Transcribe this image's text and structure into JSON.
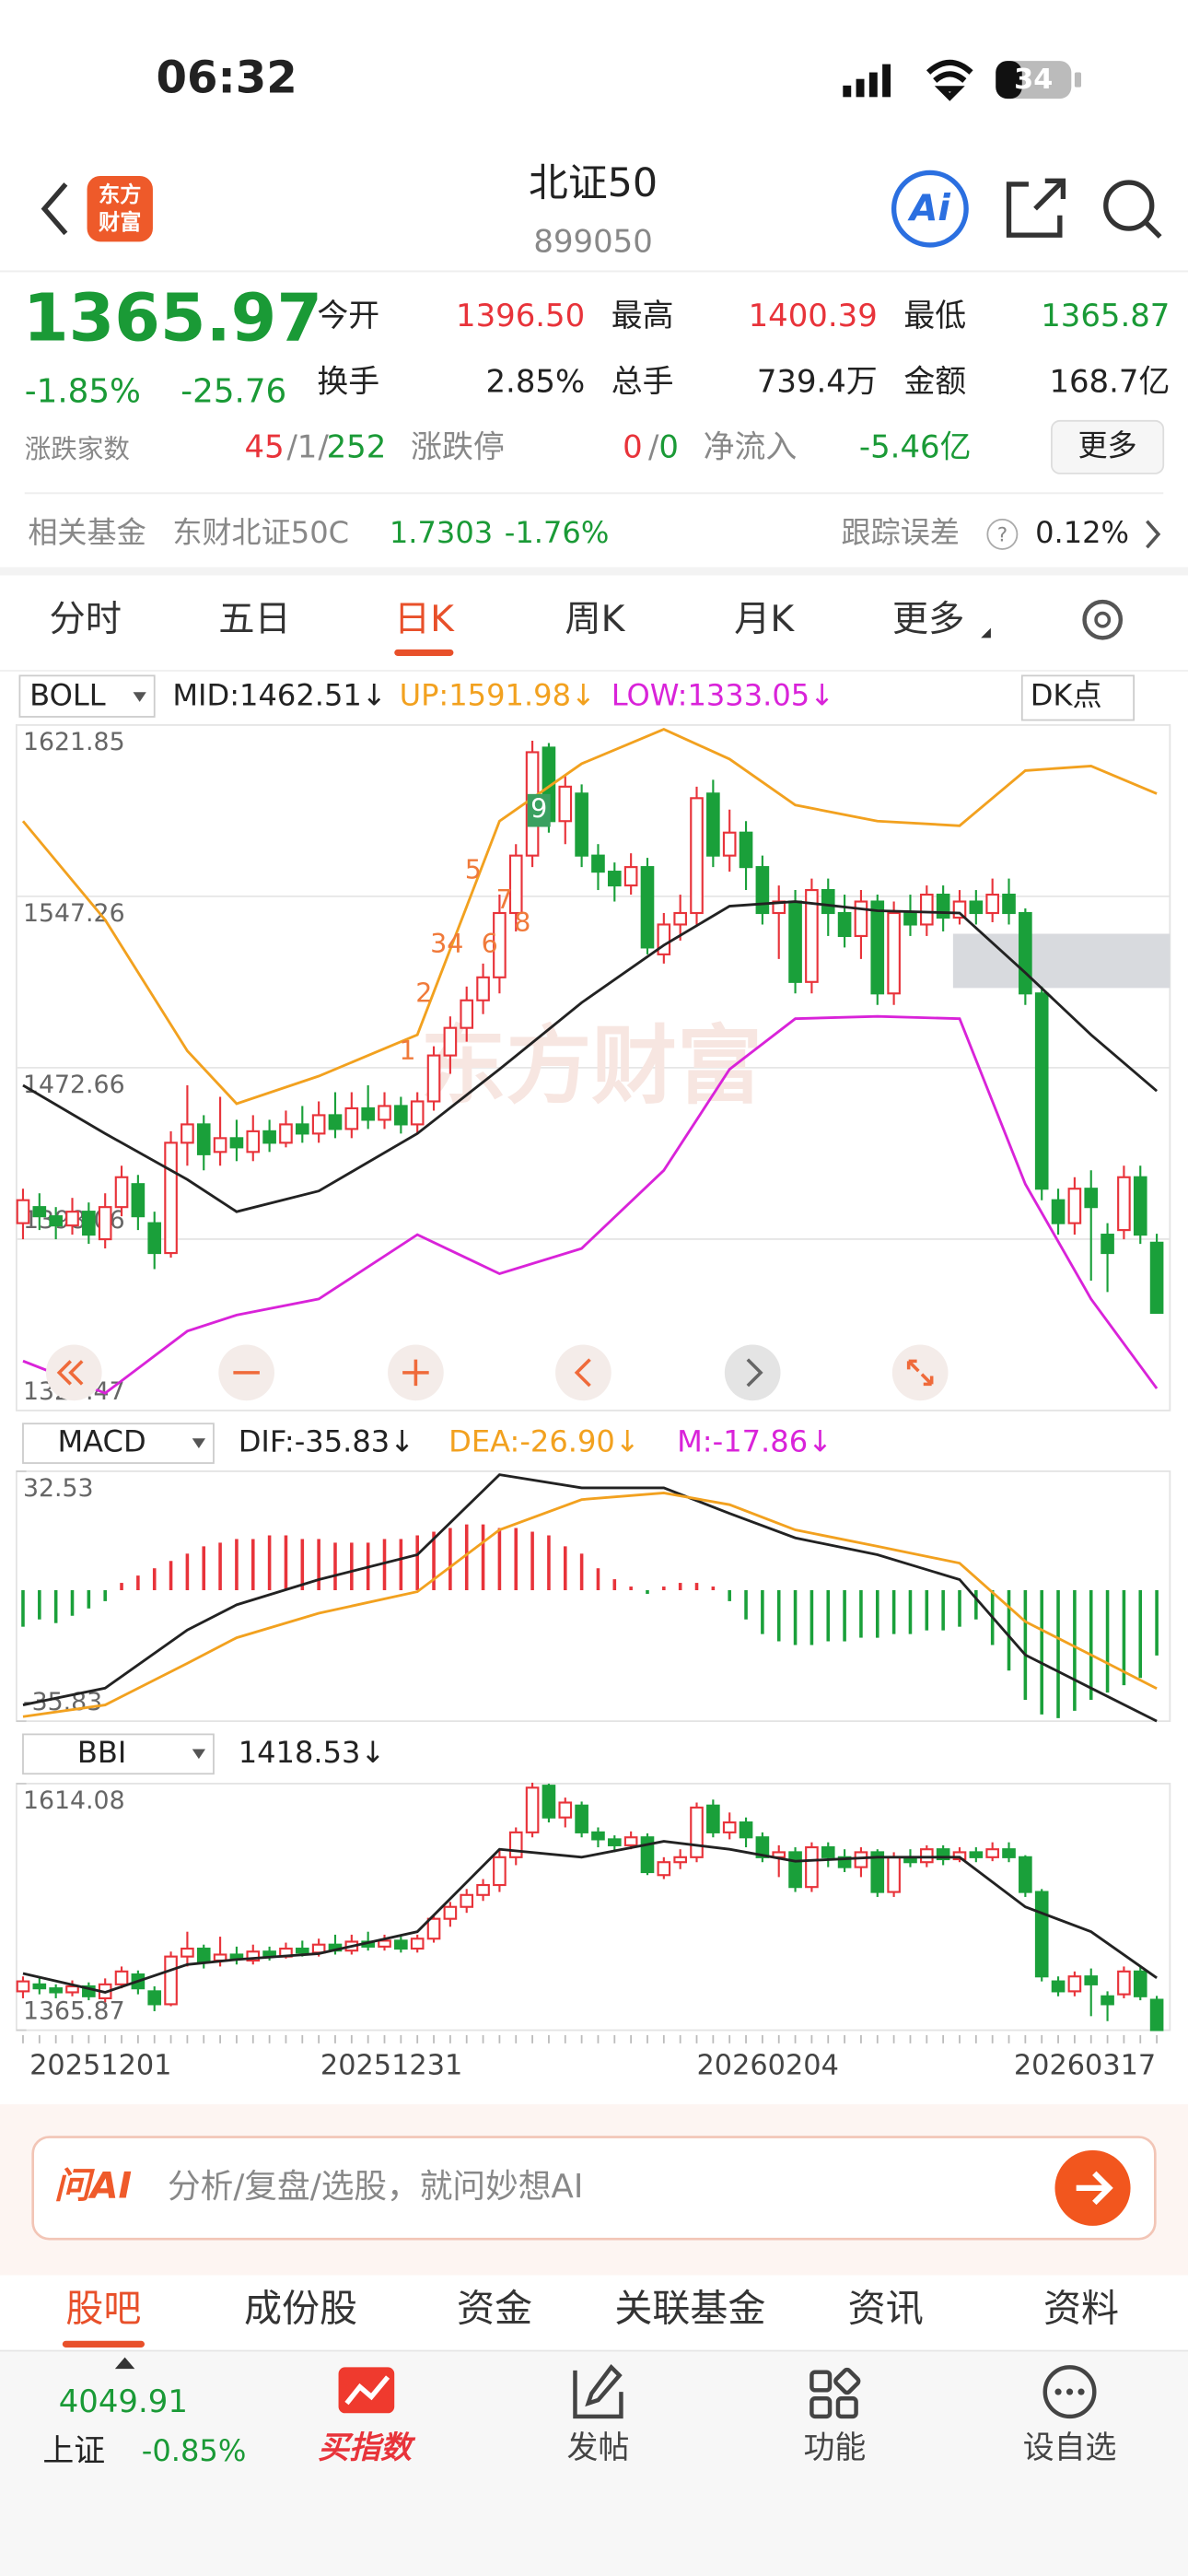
{
  "status": {
    "time": "06:32",
    "battery": "34"
  },
  "header": {
    "logo": [
      "东方",
      "财富"
    ],
    "title": "北证50",
    "code": "899050",
    "ai": "Ai"
  },
  "quote": {
    "price": "1365.97",
    "change_pct": "-1.85%",
    "change": "-25.76",
    "fields": [
      {
        "label": "今开",
        "value": "1396.50"
      },
      {
        "label": "最高",
        "value": "1400.39"
      },
      {
        "label": "最低",
        "value": "1365.87"
      },
      {
        "label": "换手",
        "value": "2.85%"
      },
      {
        "label": "总手",
        "value": "739.4万"
      },
      {
        "label": "金额",
        "value": "168.7亿"
      }
    ],
    "breadth": {
      "label": "涨跌家数",
      "parts": [
        "45",
        "1",
        "252"
      ],
      "sep": "/"
    },
    "limit": {
      "label": "涨跌停",
      "parts": [
        "0",
        "0"
      ]
    },
    "net_inflow": {
      "label": "净流入",
      "value": "-5.46亿"
    },
    "more": "更多"
  },
  "fund": {
    "label": "相关基金",
    "name": "东财北证50C",
    "price": "1.7303",
    "change": "-1.76%",
    "tracking_label": "跟踪误差",
    "help": "?",
    "tracking_value": "0.12%"
  },
  "tabs": {
    "items": [
      "分时",
      "五日",
      "日K",
      "周K",
      "月K",
      "更多"
    ],
    "active": "日K"
  },
  "chart_data": [
    {
      "type": "candlestick",
      "indicator": "BOLL",
      "badge": "DK点",
      "watermark": "东方财富",
      "legend": [
        {
          "text": "MID:1462.51↓",
          "color": "#222222"
        },
        {
          "text": "UP:1591.98↓",
          "color": "#f2a11f"
        },
        {
          "text": "LOW:1333.05↓",
          "color": "#d923d9"
        }
      ],
      "up_color": "#e8333a",
      "down_color": "#1aa03a",
      "ylim": [
        1323.47,
        1621.85
      ],
      "yticks": [
        1621.85,
        1547.26,
        1472.66,
        1398.06,
        1323.47
      ],
      "grid": true,
      "candles": [
        [
          1405,
          1415,
          1420,
          1398
        ],
        [
          1412,
          1408,
          1418,
          1402
        ],
        [
          1408,
          1404,
          1412,
          1398
        ],
        [
          1404,
          1410,
          1416,
          1400
        ],
        [
          1410,
          1400,
          1414,
          1396
        ],
        [
          1398,
          1412,
          1418,
          1394
        ],
        [
          1412,
          1425,
          1430,
          1408
        ],
        [
          1422,
          1408,
          1426,
          1402
        ],
        [
          1405,
          1392,
          1410,
          1385
        ],
        [
          1392,
          1440,
          1445,
          1390
        ],
        [
          1440,
          1448,
          1465,
          1430
        ],
        [
          1448,
          1435,
          1452,
          1428
        ],
        [
          1436,
          1442,
          1460,
          1430
        ],
        [
          1442,
          1438,
          1450,
          1432
        ],
        [
          1436,
          1445,
          1452,
          1432
        ],
        [
          1445,
          1440,
          1450,
          1436
        ],
        [
          1440,
          1448,
          1454,
          1438
        ],
        [
          1448,
          1444,
          1456,
          1440
        ],
        [
          1444,
          1452,
          1458,
          1440
        ],
        [
          1452,
          1446,
          1462,
          1442
        ],
        [
          1446,
          1455,
          1462,
          1442
        ],
        [
          1455,
          1450,
          1465,
          1446
        ],
        [
          1450,
          1456,
          1462,
          1446
        ],
        [
          1456,
          1448,
          1460,
          1444
        ],
        [
          1448,
          1458,
          1462,
          1444
        ],
        [
          1458,
          1478,
          1482,
          1454
        ],
        [
          1478,
          1490,
          1495,
          1470
        ],
        [
          1490,
          1502,
          1508,
          1484
        ],
        [
          1502,
          1512,
          1518,
          1496
        ],
        [
          1512,
          1540,
          1548,
          1505
        ],
        [
          1540,
          1565,
          1570,
          1532
        ],
        [
          1565,
          1610,
          1615,
          1560
        ],
        [
          1612,
          1580,
          1614,
          1575
        ],
        [
          1580,
          1595,
          1600,
          1570
        ],
        [
          1592,
          1565,
          1596,
          1560
        ],
        [
          1565,
          1558,
          1570,
          1550
        ],
        [
          1558,
          1552,
          1562,
          1545
        ],
        [
          1552,
          1560,
          1566,
          1548
        ],
        [
          1560,
          1525,
          1564,
          1522
        ],
        [
          1522,
          1535,
          1540,
          1518
        ],
        [
          1535,
          1540,
          1548,
          1528
        ],
        [
          1540,
          1590,
          1595,
          1535
        ],
        [
          1592,
          1565,
          1598,
          1560
        ],
        [
          1565,
          1575,
          1585,
          1558
        ],
        [
          1575,
          1560,
          1580,
          1550
        ],
        [
          1560,
          1540,
          1565,
          1535
        ],
        [
          1540,
          1545,
          1552,
          1520
        ],
        [
          1545,
          1510,
          1550,
          1505
        ],
        [
          1510,
          1550,
          1555,
          1505
        ],
        [
          1550,
          1540,
          1555,
          1530
        ],
        [
          1540,
          1530,
          1548,
          1525
        ],
        [
          1530,
          1545,
          1550,
          1520
        ],
        [
          1545,
          1505,
          1548,
          1500
        ],
        [
          1505,
          1540,
          1545,
          1500
        ],
        [
          1540,
          1535,
          1548,
          1530
        ],
        [
          1535,
          1548,
          1552,
          1530
        ],
        [
          1548,
          1538,
          1552,
          1532
        ],
        [
          1538,
          1545,
          1550,
          1535
        ],
        [
          1545,
          1540,
          1550,
          1535
        ],
        [
          1540,
          1548,
          1555,
          1536
        ],
        [
          1548,
          1540,
          1555,
          1535
        ],
        [
          1540,
          1505,
          1542,
          1500
        ],
        [
          1505,
          1420,
          1508,
          1415
        ],
        [
          1415,
          1405,
          1420,
          1400
        ],
        [
          1405,
          1420,
          1425,
          1400
        ],
        [
          1420,
          1412,
          1428,
          1380
        ],
        [
          1400,
          1392,
          1405,
          1375
        ],
        [
          1402,
          1425,
          1430,
          1398
        ],
        [
          1425,
          1400,
          1430,
          1396
        ],
        [
          1396.5,
          1365.97,
          1400.39,
          1365.87
        ]
      ],
      "line_x": [
        0,
        5,
        10,
        13,
        18,
        24,
        29,
        34,
        39,
        43,
        47,
        52,
        57,
        61,
        65,
        69
      ],
      "series": [
        {
          "name": "MID",
          "color": "#222222",
          "values": [
            1465,
            1444,
            1424,
            1410,
            1419,
            1444,
            1472,
            1501,
            1526,
            1543,
            1545,
            1541,
            1540,
            1514,
            1487,
            1462.51
          ]
        },
        {
          "name": "UP",
          "color": "#f2a11f",
          "values": [
            1580,
            1537,
            1480,
            1457,
            1469,
            1487,
            1580,
            1605,
            1620,
            1607,
            1587,
            1580,
            1578,
            1602,
            1604,
            1591.98
          ]
        },
        {
          "name": "LOW",
          "color": "#d923d9",
          "values": [
            1345,
            1331,
            1358,
            1365,
            1372,
            1400,
            1383,
            1394,
            1428,
            1472,
            1494,
            1495,
            1494,
            1422,
            1372,
            1333.05
          ]
        }
      ],
      "annotations": [
        "1",
        "2",
        "34",
        "5",
        "6",
        "7",
        "8",
        "9"
      ]
    },
    {
      "type": "macd",
      "indicator": "MACD",
      "legend": [
        {
          "text": "DIF:-35.83↓",
          "color": "#222222"
        },
        {
          "text": "DEA:-26.90↓",
          "color": "#f2a11f"
        },
        {
          "text": "M:-17.86↓",
          "color": "#d923d9"
        }
      ],
      "up_color": "#e8333a",
      "down_color": "#1aa03a",
      "ylim": [
        -35.83,
        32.53
      ],
      "yticks": [
        32.53,
        -35.83
      ],
      "hist": [
        -10,
        -8,
        -9,
        -7,
        -5,
        -3,
        2,
        4,
        6,
        8,
        10,
        12,
        13,
        14,
        14,
        15,
        15,
        14,
        14,
        13,
        13,
        13,
        14,
        14,
        15,
        16,
        17,
        18,
        18,
        17,
        17,
        16,
        15,
        12,
        10,
        6,
        3,
        1,
        -1,
        1,
        2,
        2,
        1,
        -3,
        -8,
        -12,
        -14,
        -15,
        -15,
        -14,
        -14,
        -13,
        -13,
        -12,
        -12,
        -11,
        -11,
        -10,
        -8,
        -15,
        -22,
        -30,
        -34,
        -35,
        -33,
        -30,
        -28,
        -26,
        -24,
        -17.86
      ],
      "line_x": [
        0,
        5,
        10,
        13,
        18,
        24,
        29,
        34,
        39,
        43,
        47,
        52,
        57,
        61,
        65,
        69
      ],
      "series": [
        {
          "name": "DIF",
          "color": "#222222",
          "values": [
            -31.4,
            -26.8,
            -10.9,
            -4,
            2.9,
            9.7,
            31.6,
            28,
            28,
            21,
            14.3,
            9.7,
            2.9,
            -17.7,
            -26.8,
            -35.83
          ]
        },
        {
          "name": "DEA",
          "color": "#f2a11f",
          "values": [
            -34.6,
            -31.4,
            -20,
            -13,
            -6.3,
            -0.4,
            16.5,
            24.8,
            26.6,
            23.4,
            16.5,
            12,
            7.4,
            -8.6,
            -17.7,
            -26.9
          ]
        }
      ]
    },
    {
      "type": "bbi",
      "indicator": "BBI",
      "legend": [
        {
          "text": "1418.53↓",
          "color": "#222222"
        }
      ],
      "ylim": [
        1365.87,
        1614.08
      ],
      "yticks": [
        1614.08,
        1365.87
      ],
      "x_labels": [
        "20251201",
        "20251231",
        "20260204",
        "20260317"
      ],
      "line_x": [
        0,
        5,
        10,
        13,
        18,
        24,
        29,
        34,
        39,
        43,
        47,
        52,
        57,
        61,
        65,
        69
      ],
      "series": [
        {
          "name": "BBI",
          "color": "#222222",
          "values": [
            1423,
            1404,
            1432,
            1437,
            1443,
            1465,
            1548,
            1540,
            1556,
            1548,
            1536,
            1540,
            1540,
            1490,
            1465,
            1418.53
          ]
        }
      ]
    }
  ],
  "ask": {
    "brand": "问AI",
    "placeholder": "分析/复盘/选股，就问妙想AI"
  },
  "sections": {
    "items": [
      "股吧",
      "成份股",
      "资金",
      "关联基金",
      "资讯",
      "资料"
    ],
    "active": "股吧"
  },
  "nav": {
    "index_value": "4049.91",
    "index_name": "上证",
    "index_change": "-0.85%",
    "items": [
      "买指数",
      "发帖",
      "功能",
      "设自选"
    ]
  }
}
